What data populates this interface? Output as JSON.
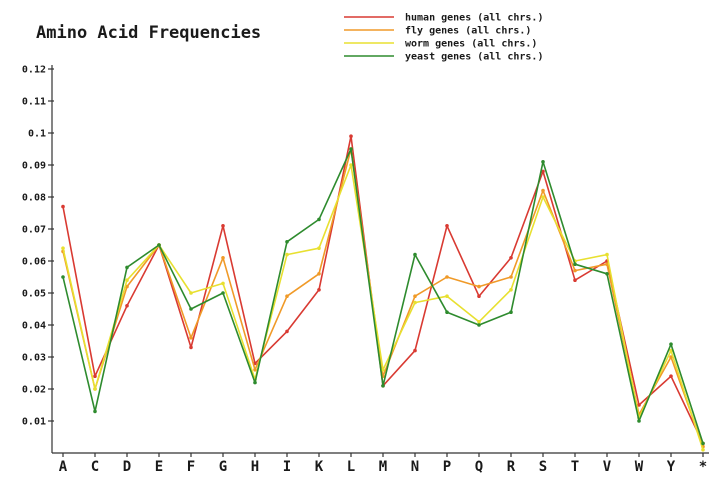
{
  "chart_data": {
    "type": "line",
    "title": "Amino Acid Frequencies",
    "xlabel": "",
    "ylabel": "",
    "ylim": [
      0,
      0.12
    ],
    "yticks": [
      "0.01",
      "0.02",
      "0.03",
      "0.04",
      "0.05",
      "0.06",
      "0.07",
      "0.08",
      "0.09",
      "0.1",
      "0.11",
      "0.12"
    ],
    "categories": [
      "A",
      "C",
      "D",
      "E",
      "F",
      "G",
      "H",
      "I",
      "K",
      "L",
      "M",
      "N",
      "P",
      "Q",
      "R",
      "S",
      "T",
      "V",
      "W",
      "Y",
      "*"
    ],
    "legend_position": "top-right",
    "grid": false,
    "series": [
      {
        "name": "human genes (all chrs.)",
        "color": "#d93a32",
        "values": [
          0.077,
          0.024,
          0.046,
          0.065,
          0.033,
          0.071,
          0.028,
          0.038,
          0.051,
          0.099,
          0.021,
          0.032,
          0.071,
          0.049,
          0.061,
          0.088,
          0.054,
          0.06,
          0.015,
          0.024,
          0.003
        ]
      },
      {
        "name": "fly genes (all chrs.)",
        "color": "#f09a28",
        "values": [
          0.063,
          0.02,
          0.052,
          0.065,
          0.036,
          0.061,
          0.026,
          0.049,
          0.056,
          0.095,
          0.024,
          0.049,
          0.055,
          0.052,
          0.055,
          0.082,
          0.057,
          0.059,
          0.012,
          0.03,
          0.002
        ]
      },
      {
        "name": "worm genes (all chrs.)",
        "color": "#e8e030",
        "values": [
          0.064,
          0.02,
          0.054,
          0.065,
          0.05,
          0.053,
          0.023,
          0.062,
          0.064,
          0.09,
          0.026,
          0.047,
          0.049,
          0.041,
          0.051,
          0.08,
          0.06,
          0.062,
          0.011,
          0.032,
          0.001
        ]
      },
      {
        "name": "yeast genes (all chrs.)",
        "color": "#2e8b2e",
        "values": [
          0.055,
          0.013,
          0.058,
          0.065,
          0.045,
          0.05,
          0.022,
          0.066,
          0.073,
          0.095,
          0.021,
          0.062,
          0.044,
          0.04,
          0.044,
          0.091,
          0.059,
          0.056,
          0.01,
          0.034,
          0.003
        ]
      }
    ]
  }
}
